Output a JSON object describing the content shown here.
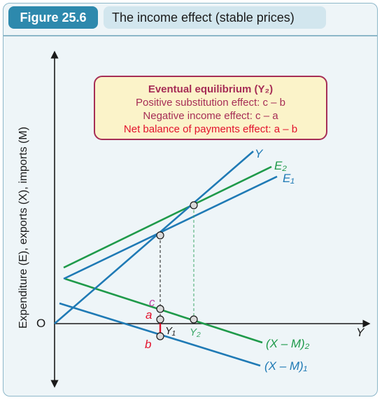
{
  "header": {
    "figure_number": "Figure 25.6",
    "figure_title": "The income effect (stable prices)"
  },
  "callout": {
    "title": "Eventual equilibrium (Y₂)",
    "line1": "Positive substitution effect: c – b",
    "line2": "Negative income effect: c – a",
    "line3": "Net balance of payments effect: a – b"
  },
  "axes": {
    "y_label": "Expenditure (E), exports (X), imports (M)",
    "origin": "O",
    "x_label": "Y"
  },
  "curves": {
    "y_line": "Y",
    "e2": "E₂",
    "e1": "E₁",
    "xm2": "(X – M)₂",
    "xm1": "(X – M)₁"
  },
  "points": {
    "c": "c",
    "a": "a",
    "b": "b",
    "y1": "Y₁",
    "y2": "Y₂"
  },
  "colors": {
    "blue": "#1f7ab5",
    "green": "#1f9a4a",
    "magenta": "#a62d56",
    "red": "#e3122c",
    "dark_green": "#3da86a"
  }
}
